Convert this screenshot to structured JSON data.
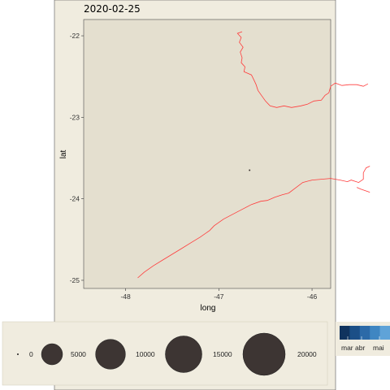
{
  "chart_data": {
    "type": "map",
    "title": "2020-02-25",
    "xlabel": "long",
    "ylabel": "lat",
    "xlim": [
      -48.45,
      -45.8
    ],
    "ylim": [
      -25.1,
      -21.8
    ],
    "x_ticks": [
      -48,
      -47,
      -46
    ],
    "y_ticks": [
      -22,
      -23,
      -24,
      -25
    ],
    "grid": false,
    "coastline_color": "#ff3b3b",
    "point_color": "#3d3533",
    "panel_color": "#e4dfcf",
    "background_color": "#f0ecdf",
    "coastlines": [
      {
        "name": "north-line",
        "points": [
          [
            -46.75,
            -21.95
          ],
          [
            -46.8,
            -21.97
          ],
          [
            -46.76,
            -22.02
          ],
          [
            -46.78,
            -22.08
          ],
          [
            -46.74,
            -22.14
          ],
          [
            -46.77,
            -22.2
          ],
          [
            -46.75,
            -22.27
          ],
          [
            -46.76,
            -22.33
          ],
          [
            -46.72,
            -22.38
          ],
          [
            -46.73,
            -22.44
          ],
          [
            -46.65,
            -22.48
          ],
          [
            -46.62,
            -22.55
          ],
          [
            -46.6,
            -22.6
          ],
          [
            -46.58,
            -22.67
          ],
          [
            -46.55,
            -22.72
          ],
          [
            -46.5,
            -22.8
          ],
          [
            -46.45,
            -22.86
          ],
          [
            -46.38,
            -22.88
          ],
          [
            -46.3,
            -22.86
          ],
          [
            -46.22,
            -22.88
          ],
          [
            -46.12,
            -22.86
          ],
          [
            -46.05,
            -22.84
          ],
          [
            -45.98,
            -22.8
          ],
          [
            -45.9,
            -22.79
          ],
          [
            -45.86,
            -22.73
          ],
          [
            -45.82,
            -22.7
          ],
          [
            -45.8,
            -22.62
          ],
          [
            -45.75,
            -22.58
          ],
          [
            -45.68,
            -22.61
          ],
          [
            -45.6,
            -22.6
          ],
          [
            -45.52,
            -22.6
          ],
          [
            -45.45,
            -22.62
          ],
          [
            -45.4,
            -22.59
          ]
        ]
      },
      {
        "name": "south-line",
        "points": [
          [
            -47.87,
            -24.97
          ],
          [
            -47.8,
            -24.9
          ],
          [
            -47.7,
            -24.82
          ],
          [
            -47.6,
            -24.75
          ],
          [
            -47.5,
            -24.68
          ],
          [
            -47.4,
            -24.61
          ],
          [
            -47.3,
            -24.54
          ],
          [
            -47.2,
            -24.47
          ],
          [
            -47.1,
            -24.39
          ],
          [
            -47.05,
            -24.33
          ],
          [
            -46.95,
            -24.25
          ],
          [
            -46.85,
            -24.19
          ],
          [
            -46.75,
            -24.13
          ],
          [
            -46.65,
            -24.07
          ],
          [
            -46.55,
            -24.03
          ],
          [
            -46.48,
            -24.02
          ],
          [
            -46.4,
            -23.98
          ],
          [
            -46.32,
            -23.95
          ],
          [
            -46.25,
            -23.93
          ],
          [
            -46.18,
            -23.87
          ],
          [
            -46.1,
            -23.8
          ],
          [
            -46.0,
            -23.77
          ],
          [
            -45.9,
            -23.76
          ],
          [
            -45.8,
            -23.75
          ],
          [
            -45.7,
            -23.77
          ],
          [
            -45.62,
            -23.79
          ],
          [
            -45.58,
            -23.77
          ],
          [
            -45.5,
            -23.8
          ],
          [
            -45.45,
            -23.76
          ],
          [
            -45.45,
            -23.68
          ],
          [
            -45.42,
            -23.62
          ],
          [
            -45.38,
            -23.6
          ]
        ]
      },
      {
        "name": "south-east-stub",
        "points": [
          [
            -45.52,
            -23.86
          ],
          [
            -45.48,
            -23.88
          ],
          [
            -45.43,
            -23.9
          ],
          [
            -45.38,
            -23.92
          ]
        ]
      }
    ],
    "points": [
      {
        "long": -46.67,
        "lat": -23.65,
        "value": 5
      }
    ],
    "size_legend": {
      "values": [
        0,
        5000,
        10000,
        15000,
        20000
      ],
      "labels": [
        "0",
        "5000",
        "10000",
        "15000",
        "20000"
      ]
    },
    "color_legend": {
      "labels": [
        "mar",
        "abr",
        "mai"
      ],
      "colors": [
        "#10335e",
        "#1b4f87",
        "#2c6aa8",
        "#3f86c2",
        "#5fa3d8"
      ]
    }
  }
}
